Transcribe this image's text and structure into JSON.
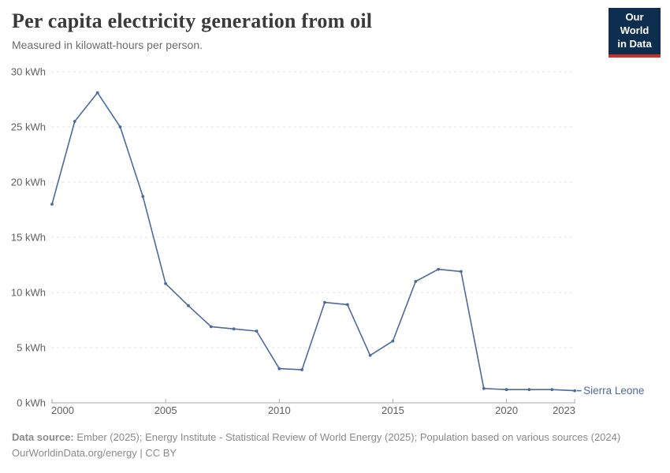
{
  "header": {
    "title": "Per capita electricity generation from oil",
    "subtitle": "Measured in kilowatt-hours per person.",
    "logo": {
      "line1": "Our World",
      "line2": "in Data"
    }
  },
  "colors": {
    "accent": "#4C6A9C",
    "grid": "#e0e0e0",
    "axis": "#a8a8a8",
    "tick_text": "#606060",
    "logo_bg": "#0d2e4e",
    "logo_red": "#cf2e22"
  },
  "chart_data": {
    "type": "line",
    "title": "Per capita electricity generation from oil",
    "unit": "kWh",
    "grid": "horizontal dashed",
    "legend_position": "end-of-line label",
    "ylim": [
      0,
      30
    ],
    "xlim": [
      2000,
      2023
    ],
    "x": [
      2000,
      2001,
      2002,
      2003,
      2004,
      2005,
      2006,
      2007,
      2008,
      2009,
      2010,
      2011,
      2012,
      2013,
      2014,
      2015,
      2016,
      2017,
      2018,
      2019,
      2020,
      2021,
      2022,
      2023
    ],
    "series": [
      {
        "name": "Sierra Leone",
        "color": "#4C6A9C",
        "values": [
          18.0,
          25.5,
          28.1,
          25.0,
          18.7,
          10.8,
          8.8,
          6.9,
          6.7,
          6.5,
          3.1,
          3.0,
          9.1,
          8.9,
          4.3,
          5.6,
          11.0,
          12.1,
          11.9,
          1.3,
          1.2,
          1.2,
          1.2,
          1.1
        ]
      }
    ],
    "y_ticks": {
      "values": [
        0,
        5,
        10,
        15,
        20,
        25,
        30
      ],
      "labels": [
        "0 kWh",
        "5 kWh",
        "10 kWh",
        "15 kWh",
        "20 kWh",
        "25 kWh",
        "30 kWh"
      ]
    },
    "x_ticks": {
      "values": [
        2000,
        2005,
        2010,
        2015,
        2020,
        2023
      ],
      "labels": [
        "2000",
        "2005",
        "2010",
        "2015",
        "2020",
        "2023"
      ]
    }
  },
  "footer": {
    "source_label": "Data source:",
    "sources": "Ember (2025); Energy Institute - Statistical Review of World Energy (2025); Population based on various sources (2024)",
    "link": "OurWorldinData.org/energy",
    "separator": "|",
    "license": "CC BY"
  }
}
